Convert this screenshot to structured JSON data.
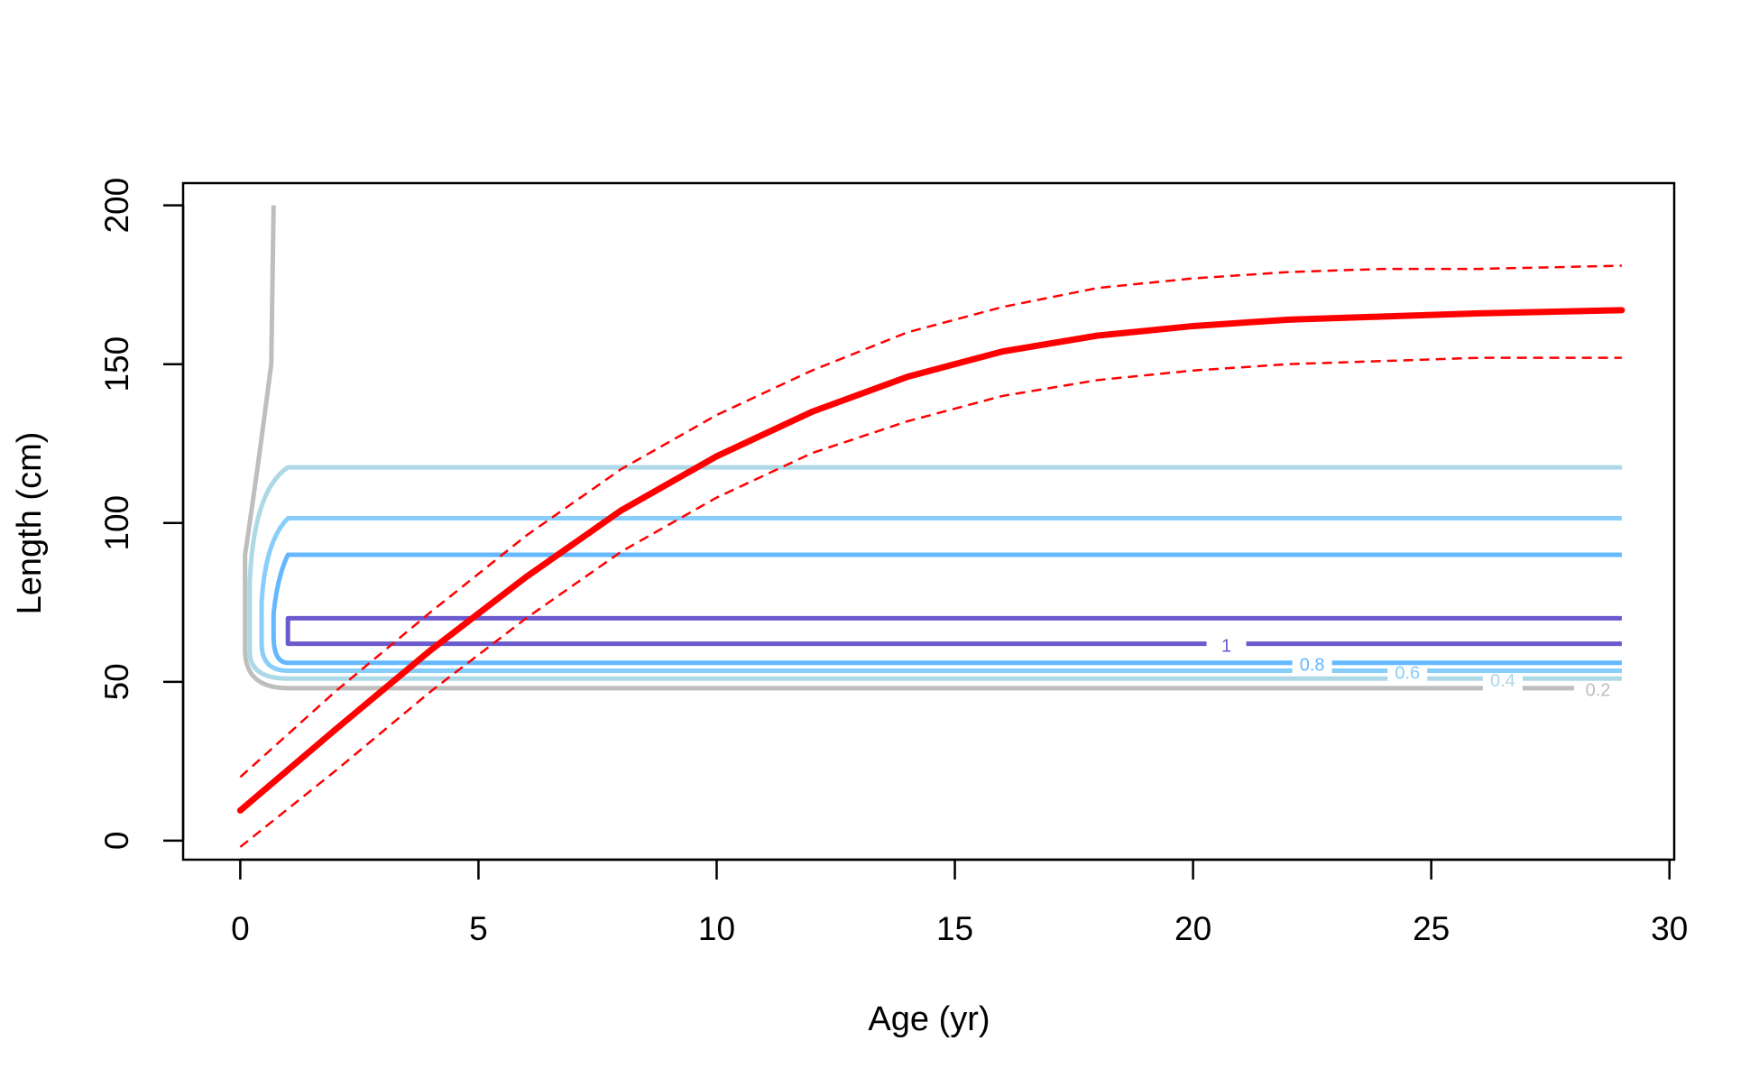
{
  "chart_data": {
    "type": "line",
    "title": "",
    "xlabel": "Age (yr)",
    "ylabel": "Length (cm)",
    "xlim": [
      -1.2,
      30.1
    ],
    "ylim": [
      -6,
      207
    ],
    "xticks": [
      0,
      5,
      10,
      15,
      20,
      25,
      30
    ],
    "yticks": [
      0,
      50,
      100,
      150,
      200
    ],
    "grid": false,
    "legend": "none",
    "colors": {
      "growth": "#ff0000",
      "c1": "#6a5acd",
      "c08": "#63b8ff",
      "c06": "#87cefa",
      "c04": "#add8e6",
      "c02": "#bebebe"
    },
    "growth_curve": {
      "x": [
        0,
        2,
        4,
        6,
        8,
        10,
        12,
        14,
        16,
        18,
        20,
        22,
        24,
        26,
        29
      ],
      "y": [
        9.5,
        35,
        60,
        83,
        104,
        121,
        135,
        146,
        154,
        159,
        162,
        164,
        165,
        166,
        167
      ]
    },
    "growth_upper": {
      "x": [
        0,
        2,
        4,
        6,
        8,
        10,
        12,
        14,
        16,
        18,
        20,
        22,
        24,
        26,
        29
      ],
      "y": [
        20,
        47,
        72,
        96,
        117,
        134,
        148,
        160,
        168,
        174,
        177,
        179,
        180,
        180,
        181
      ]
    },
    "growth_lower": {
      "x": [
        0,
        2,
        4,
        6,
        8,
        10,
        12,
        14,
        16,
        18,
        20,
        22,
        24,
        26,
        29
      ],
      "y": [
        -2,
        22,
        47,
        70,
        91,
        108,
        122,
        132,
        140,
        145,
        148,
        150,
        151,
        152,
        152
      ]
    },
    "contours": [
      {
        "level": "1",
        "bottom": 62,
        "top": 70,
        "x_inner": 1.0,
        "x_end": 29,
        "label_x": 20.7,
        "label_y": 61.5
      },
      {
        "level": "0.8",
        "bottom": 56,
        "top": 90,
        "x_inner": 0.85,
        "x_end": 29,
        "label_x": 22.5,
        "label_y": 55.5
      },
      {
        "level": "0.6",
        "bottom": 53.5,
        "top": 101.5,
        "x_inner": 0.6,
        "x_end": 29,
        "label_x": 24.5,
        "label_y": 53
      },
      {
        "level": "0.4",
        "bottom": 51,
        "top": 117.5,
        "x_inner": 0.35,
        "x_end": 29,
        "label_x": 26.5,
        "label_y": 50.5
      },
      {
        "level": "0.2",
        "bottom": 48,
        "top": 200,
        "x_inner": 0.2,
        "x_end": 28,
        "label_x": 28.5,
        "label_y": 47.5
      }
    ]
  }
}
